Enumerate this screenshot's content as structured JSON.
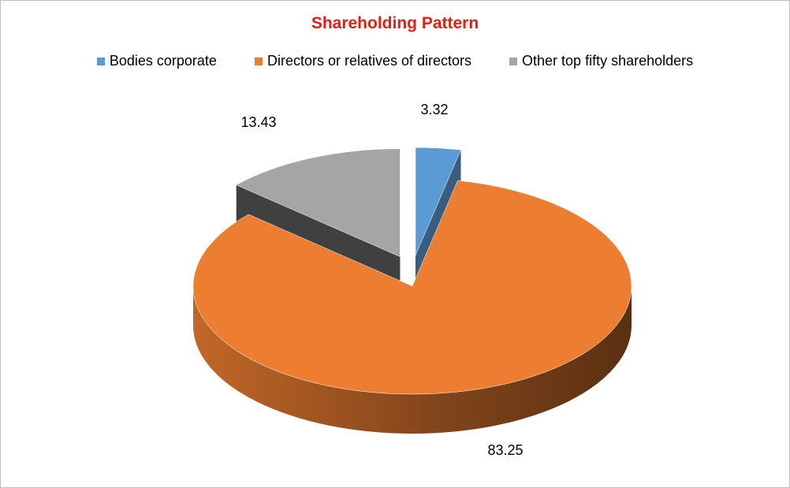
{
  "chart_data": {
    "type": "pie",
    "title": "Shareholding Pattern",
    "legend_position": "top",
    "categories": [
      "Bodies corporate",
      "Directors or relatives of directors",
      "Other top fifty shareholders"
    ],
    "values": [
      3.32,
      83.25,
      13.43
    ],
    "colors": [
      "#5b9bd5",
      "#ed7d31",
      "#a5a5a5"
    ],
    "labels": [
      "3.32",
      "83.25",
      "13.43"
    ],
    "exploded": [
      true,
      false,
      true
    ],
    "style": "3d"
  }
}
